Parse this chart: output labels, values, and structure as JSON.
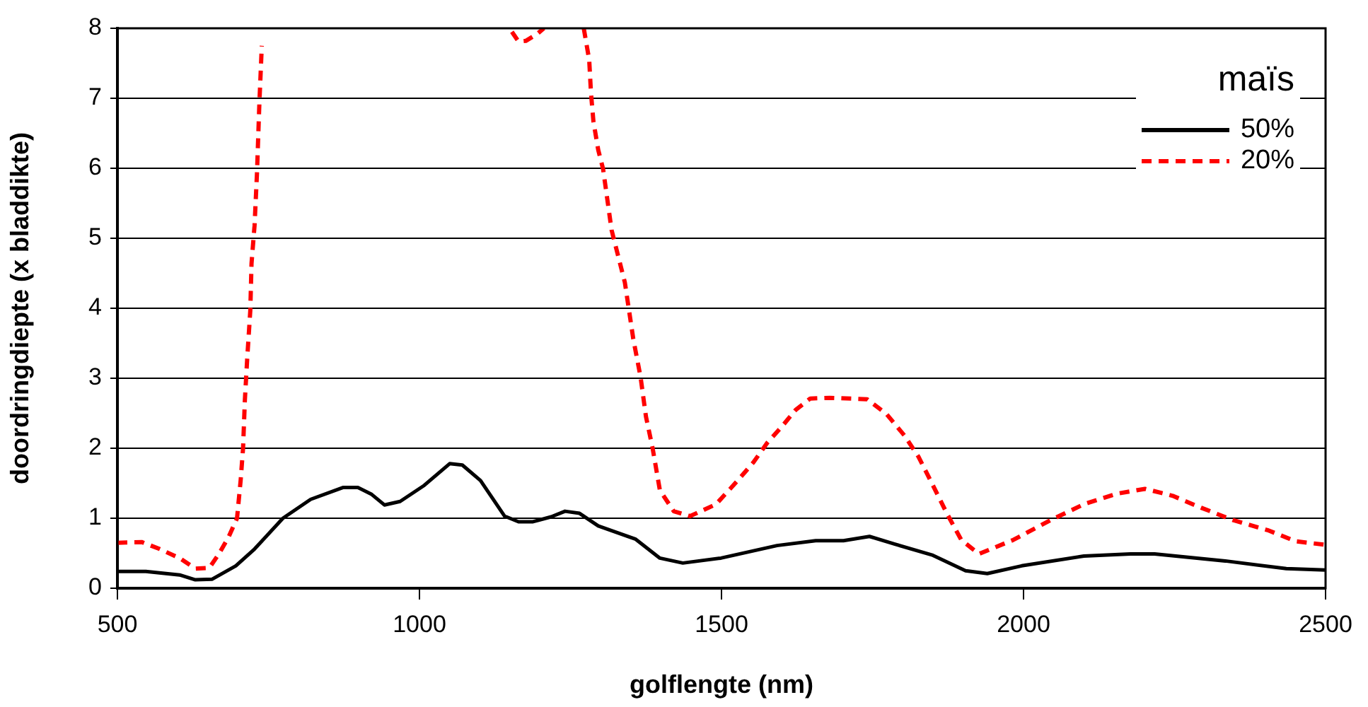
{
  "chart_data": {
    "type": "line",
    "xlabel": "golflengte (nm)",
    "ylabel": "doordringdiepte (x bladdikte)",
    "legend_title": "maïs",
    "xlim": [
      500,
      2500
    ],
    "xticks": [
      500,
      1000,
      1500,
      2000,
      2500
    ],
    "ylim": [
      0,
      8
    ],
    "yticks": [
      0,
      1,
      2,
      3,
      4,
      5,
      6,
      7,
      8
    ],
    "grid": "y",
    "legend": "top right",
    "marker": "none",
    "series": [
      {
        "name": "50%",
        "color": "#000000",
        "line_style": "solid",
        "x": [
          500,
          547,
          603,
          629,
          657,
          696,
          727,
          774,
          820,
          874,
          898,
          921,
          942,
          968,
          1008,
          1050,
          1071,
          1101,
          1141,
          1164,
          1188,
          1218,
          1241,
          1265,
          1296,
          1358,
          1398,
          1436,
          1499,
          1592,
          1656,
          1702,
          1745,
          1787,
          1850,
          1904,
          1940,
          1997,
          2100,
          2177,
          2217,
          2334,
          2435,
          2500
        ],
        "values": [
          0.24,
          0.24,
          0.19,
          0.12,
          0.13,
          0.32,
          0.56,
          1.0,
          1.27,
          1.44,
          1.44,
          1.34,
          1.19,
          1.24,
          1.47,
          1.78,
          1.76,
          1.54,
          1.03,
          0.95,
          0.95,
          1.02,
          1.1,
          1.07,
          0.89,
          0.7,
          0.43,
          0.36,
          0.43,
          0.61,
          0.68,
          0.68,
          0.74,
          0.63,
          0.47,
          0.25,
          0.21,
          0.32,
          0.46,
          0.49,
          0.49,
          0.39,
          0.28,
          0.26
        ]
      },
      {
        "name": "20%",
        "color": "#ff0000",
        "line_style": "dashed",
        "x": [
          500,
          540,
          570,
          603,
          629,
          652,
          668,
          684,
          698,
          704,
          708,
          711,
          715,
          720,
          722,
          727,
          731,
          735,
          739,
          745,
          1150,
          1153,
          1164,
          1176,
          1195,
          1206,
          1240,
          1272,
          1281,
          1284,
          1288,
          1296,
          1304,
          1318,
          1340,
          1354,
          1366,
          1375,
          1386,
          1398,
          1421,
          1448,
          1491,
          1527,
          1553,
          1576,
          1600,
          1623,
          1647,
          1679,
          1741,
          1773,
          1803,
          1826,
          1850,
          1873,
          1897,
          1926,
          1983,
          2044,
          2100,
          2154,
          2201,
          2247,
          2294,
          2348,
          2404,
          2451,
          2500
        ],
        "values": [
          0.65,
          0.66,
          0.56,
          0.43,
          0.28,
          0.29,
          0.49,
          0.73,
          1.0,
          1.54,
          2.0,
          2.69,
          3.3,
          3.97,
          4.64,
          5.18,
          5.92,
          6.93,
          7.75,
          null,
          null,
          7.95,
          7.81,
          7.82,
          7.92,
          8.0,
          null,
          8.0,
          7.55,
          7.07,
          6.67,
          6.26,
          5.99,
          5.12,
          4.37,
          3.56,
          3.02,
          2.45,
          2.0,
          1.4,
          1.1,
          1.03,
          1.2,
          1.54,
          1.8,
          2.08,
          2.31,
          2.55,
          2.71,
          2.72,
          2.7,
          2.49,
          2.18,
          1.88,
          1.47,
          1.07,
          0.69,
          0.49,
          0.69,
          0.97,
          1.2,
          1.35,
          1.42,
          1.32,
          1.15,
          0.97,
          0.83,
          0.67,
          0.62
        ]
      }
    ]
  }
}
